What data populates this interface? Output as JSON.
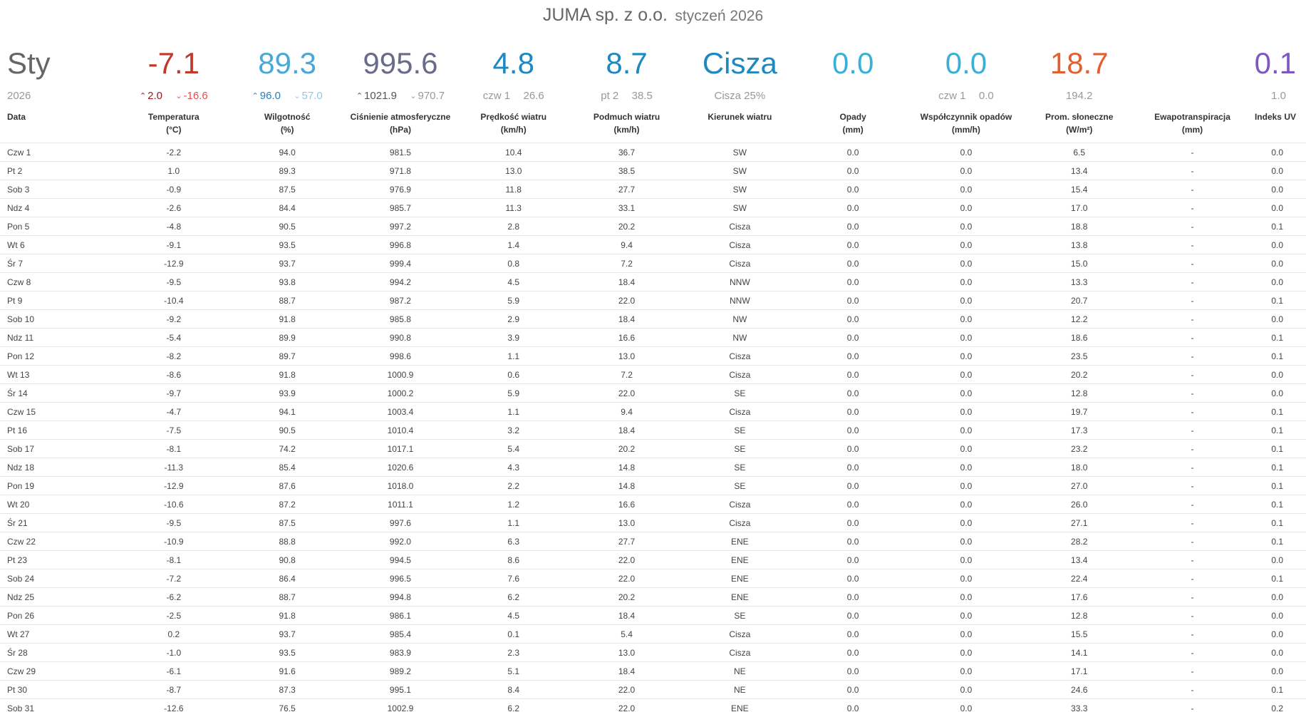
{
  "header": {
    "station": "JUMA sp. z o.o.",
    "period": "styczeń 2026"
  },
  "summary": {
    "month": "Sty",
    "year": "2026",
    "temperature": {
      "value": "-7.1",
      "max": "2.0",
      "min": "-16.6",
      "color": "#c0392b"
    },
    "humidity": {
      "value": "89.3",
      "max": "96.0",
      "min": "57.0",
      "color": "#4aa8d8"
    },
    "pressure": {
      "value": "995.6",
      "max": "1021.9",
      "min": "970.7",
      "color": "#6a6a8a"
    },
    "wind_speed": {
      "value": "4.8",
      "day": "czw 1",
      "day_value": "26.6",
      "color": "#1e88c0"
    },
    "wind_gust": {
      "value": "8.7",
      "day": "pt 2",
      "day_value": "38.5",
      "color": "#1e88c0"
    },
    "wind_direction": {
      "value": "Cisza",
      "sub": "Cisza 25%",
      "color": "#1e88c0"
    },
    "rain": {
      "value": "0.0",
      "color": "#3ab0d8"
    },
    "rain_rate": {
      "value": "0.0",
      "day": "czw 1",
      "day_value": "0.0",
      "color": "#3ab0d8"
    },
    "solar": {
      "value": "18.7",
      "sub": "194.2",
      "color": "#e06030"
    },
    "uv": {
      "value": "0.1",
      "sub": "1.0",
      "color": "#7e57c2"
    }
  },
  "columns": {
    "date": "Data",
    "temp": [
      "Temperatura",
      "(°C)"
    ],
    "hum": [
      "Wilgotność",
      "(%)"
    ],
    "pres": [
      "Ciśnienie atmosferyczne",
      "(hPa)"
    ],
    "wind": [
      "Prędkość wiatru",
      "(km/h)"
    ],
    "gust": [
      "Podmuch wiatru",
      "(km/h)"
    ],
    "dir": [
      "Kierunek wiatru",
      ""
    ],
    "rain": [
      "Opady",
      "(mm)"
    ],
    "rate": [
      "Współczynnik opadów",
      "(mm/h)"
    ],
    "sun": [
      "Prom. słoneczne",
      "(W/m²)"
    ],
    "et": [
      "Ewapotranspiracja",
      "(mm)"
    ],
    "uv": "Indeks UV"
  },
  "rows": [
    [
      "Czw 1",
      "-2.2",
      "94.0",
      "981.5",
      "10.4",
      "36.7",
      "SW",
      "0.0",
      "0.0",
      "6.5",
      "-",
      "0.0"
    ],
    [
      "Pt 2",
      "1.0",
      "89.3",
      "971.8",
      "13.0",
      "38.5",
      "SW",
      "0.0",
      "0.0",
      "13.4",
      "-",
      "0.0"
    ],
    [
      "Sob 3",
      "-0.9",
      "87.5",
      "976.9",
      "11.8",
      "27.7",
      "SW",
      "0.0",
      "0.0",
      "15.4",
      "-",
      "0.0"
    ],
    [
      "Ndz 4",
      "-2.6",
      "84.4",
      "985.7",
      "11.3",
      "33.1",
      "SW",
      "0.0",
      "0.0",
      "17.0",
      "-",
      "0.0"
    ],
    [
      "Pon 5",
      "-4.8",
      "90.5",
      "997.2",
      "2.8",
      "20.2",
      "Cisza",
      "0.0",
      "0.0",
      "18.8",
      "-",
      "0.1"
    ],
    [
      "Wt 6",
      "-9.1",
      "93.5",
      "996.8",
      "1.4",
      "9.4",
      "Cisza",
      "0.0",
      "0.0",
      "13.8",
      "-",
      "0.0"
    ],
    [
      "Śr 7",
      "-12.9",
      "93.7",
      "999.4",
      "0.8",
      "7.2",
      "Cisza",
      "0.0",
      "0.0",
      "15.0",
      "-",
      "0.0"
    ],
    [
      "Czw 8",
      "-9.5",
      "93.8",
      "994.2",
      "4.5",
      "18.4",
      "NNW",
      "0.0",
      "0.0",
      "13.3",
      "-",
      "0.0"
    ],
    [
      "Pt 9",
      "-10.4",
      "88.7",
      "987.2",
      "5.9",
      "22.0",
      "NNW",
      "0.0",
      "0.0",
      "20.7",
      "-",
      "0.1"
    ],
    [
      "Sob 10",
      "-9.2",
      "91.8",
      "985.8",
      "2.9",
      "18.4",
      "NW",
      "0.0",
      "0.0",
      "12.2",
      "-",
      "0.0"
    ],
    [
      "Ndz 11",
      "-5.4",
      "89.9",
      "990.8",
      "3.9",
      "16.6",
      "NW",
      "0.0",
      "0.0",
      "18.6",
      "-",
      "0.1"
    ],
    [
      "Pon 12",
      "-8.2",
      "89.7",
      "998.6",
      "1.1",
      "13.0",
      "Cisza",
      "0.0",
      "0.0",
      "23.5",
      "-",
      "0.1"
    ],
    [
      "Wt 13",
      "-8.6",
      "91.8",
      "1000.9",
      "0.6",
      "7.2",
      "Cisza",
      "0.0",
      "0.0",
      "20.2",
      "-",
      "0.0"
    ],
    [
      "Śr 14",
      "-9.7",
      "93.9",
      "1000.2",
      "5.9",
      "22.0",
      "SE",
      "0.0",
      "0.0",
      "12.8",
      "-",
      "0.0"
    ],
    [
      "Czw 15",
      "-4.7",
      "94.1",
      "1003.4",
      "1.1",
      "9.4",
      "Cisza",
      "0.0",
      "0.0",
      "19.7",
      "-",
      "0.1"
    ],
    [
      "Pt 16",
      "-7.5",
      "90.5",
      "1010.4",
      "3.2",
      "18.4",
      "SE",
      "0.0",
      "0.0",
      "17.3",
      "-",
      "0.1"
    ],
    [
      "Sob 17",
      "-8.1",
      "74.2",
      "1017.1",
      "5.4",
      "20.2",
      "SE",
      "0.0",
      "0.0",
      "23.2",
      "-",
      "0.1"
    ],
    [
      "Ndz 18",
      "-11.3",
      "85.4",
      "1020.6",
      "4.3",
      "14.8",
      "SE",
      "0.0",
      "0.0",
      "18.0",
      "-",
      "0.1"
    ],
    [
      "Pon 19",
      "-12.9",
      "87.6",
      "1018.0",
      "2.2",
      "14.8",
      "SE",
      "0.0",
      "0.0",
      "27.0",
      "-",
      "0.1"
    ],
    [
      "Wt 20",
      "-10.6",
      "87.2",
      "1011.1",
      "1.2",
      "16.6",
      "Cisza",
      "0.0",
      "0.0",
      "26.0",
      "-",
      "0.1"
    ],
    [
      "Śr 21",
      "-9.5",
      "87.5",
      "997.6",
      "1.1",
      "13.0",
      "Cisza",
      "0.0",
      "0.0",
      "27.1",
      "-",
      "0.1"
    ],
    [
      "Czw 22",
      "-10.9",
      "88.8",
      "992.0",
      "6.3",
      "27.7",
      "ENE",
      "0.0",
      "0.0",
      "28.2",
      "-",
      "0.1"
    ],
    [
      "Pt 23",
      "-8.1",
      "90.8",
      "994.5",
      "8.6",
      "22.0",
      "ENE",
      "0.0",
      "0.0",
      "13.4",
      "-",
      "0.0"
    ],
    [
      "Sob 24",
      "-7.2",
      "86.4",
      "996.5",
      "7.6",
      "22.0",
      "ENE",
      "0.0",
      "0.0",
      "22.4",
      "-",
      "0.1"
    ],
    [
      "Ndz 25",
      "-6.2",
      "88.7",
      "994.8",
      "6.2",
      "20.2",
      "ENE",
      "0.0",
      "0.0",
      "17.6",
      "-",
      "0.0"
    ],
    [
      "Pon 26",
      "-2.5",
      "91.8",
      "986.1",
      "4.5",
      "18.4",
      "SE",
      "0.0",
      "0.0",
      "12.8",
      "-",
      "0.0"
    ],
    [
      "Wt 27",
      "0.2",
      "93.7",
      "985.4",
      "0.1",
      "5.4",
      "Cisza",
      "0.0",
      "0.0",
      "15.5",
      "-",
      "0.0"
    ],
    [
      "Śr 28",
      "-1.0",
      "93.5",
      "983.9",
      "2.3",
      "13.0",
      "Cisza",
      "0.0",
      "0.0",
      "14.1",
      "-",
      "0.0"
    ],
    [
      "Czw 29",
      "-6.1",
      "91.6",
      "989.2",
      "5.1",
      "18.4",
      "NE",
      "0.0",
      "0.0",
      "17.1",
      "-",
      "0.0"
    ],
    [
      "Pt 30",
      "-8.7",
      "87.3",
      "995.1",
      "8.4",
      "22.0",
      "NE",
      "0.0",
      "0.0",
      "24.6",
      "-",
      "0.1"
    ],
    [
      "Sob 31",
      "-12.6",
      "76.5",
      "1002.9",
      "6.2",
      "22.0",
      "ENE",
      "0.0",
      "0.0",
      "33.3",
      "-",
      "0.2"
    ]
  ]
}
